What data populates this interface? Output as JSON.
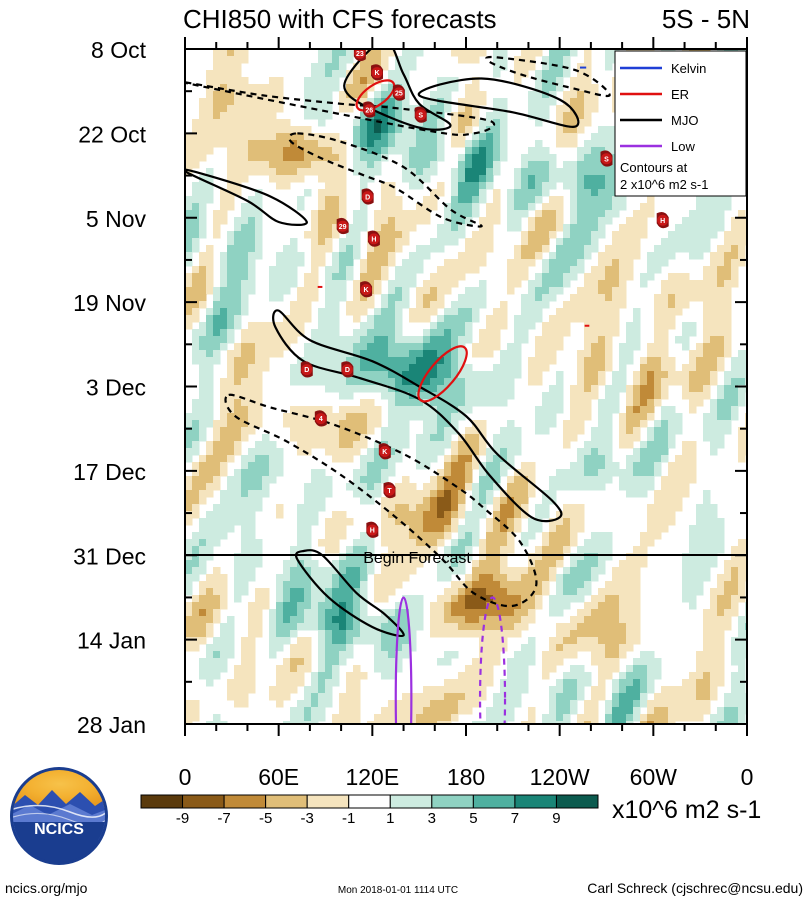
{
  "chart_data": {
    "type": "heatmap",
    "title": "CHI850 with CFS forecasts",
    "region": "5S - 5N",
    "y_tick_labels": [
      "8 Oct",
      "22 Oct",
      "5 Nov",
      "19 Nov",
      "3 Dec",
      "17 Dec",
      "31 Dec",
      "14 Jan",
      "28 Jan"
    ],
    "x_tick_labels": [
      "0",
      "60E",
      "120E",
      "180",
      "120W",
      "60W",
      "0"
    ],
    "x_longitudes": [
      0,
      60,
      120,
      180,
      240,
      300,
      360
    ],
    "forecast_line_label": "Begin Forecast",
    "forecast_start_row": 6,
    "legend": [
      {
        "name": "Kelvin",
        "color": "#1f3fd6"
      },
      {
        "name": "ER",
        "color": "#e01010"
      },
      {
        "name": "MJO",
        "color": "#000000"
      },
      {
        "name": "Low",
        "color": "#9b30e0"
      }
    ],
    "contour_note": [
      "Contours at",
      "2 x10^6 m2 s-1"
    ],
    "colorbar": {
      "ticks": [
        "-9",
        "-7",
        "-5",
        "-3",
        "-1",
        "1",
        "3",
        "5",
        "7",
        "9"
      ],
      "unit": "x10^6 m2 s-1",
      "colors": [
        "#5a3a0c",
        "#8a5a18",
        "#c08a38",
        "#e0be78",
        "#f5e4be",
        "#ffffff",
        "#cdebe0",
        "#8fd2c2",
        "#4fb0a0",
        "#1a8577",
        "#0c5b4f"
      ]
    },
    "anomaly_features": [
      {
        "kind": "positive",
        "lon": 108,
        "row": 0.9,
        "strength": 7
      },
      {
        "kind": "positive",
        "lon": 165,
        "row": 1.3,
        "strength": 5
      },
      {
        "kind": "positive",
        "lon": 255,
        "row": 1.6,
        "strength": 4
      },
      {
        "kind": "negative",
        "lon": 75,
        "row": 1.2,
        "strength": 6
      },
      {
        "kind": "negative",
        "lon": 40,
        "row": 0.6,
        "strength": 3
      },
      {
        "kind": "negative",
        "lon": 130,
        "row": 1.0,
        "strength": 2
      },
      {
        "kind": "positive",
        "lon": 30,
        "row": 2.4,
        "strength": 3
      },
      {
        "kind": "negative",
        "lon": 120,
        "row": 2.2,
        "strength": 2
      },
      {
        "kind": "positive",
        "lon": 130,
        "row": 3.5,
        "strength": 3
      },
      {
        "kind": "positive",
        "lon": 150,
        "row": 3.9,
        "strength": 7
      },
      {
        "kind": "negative",
        "lon": 280,
        "row": 3.8,
        "strength": 3
      },
      {
        "kind": "negative",
        "lon": 70,
        "row": 4.4,
        "strength": 3
      },
      {
        "kind": "negative",
        "lon": 320,
        "row": 3.0,
        "strength": 2
      },
      {
        "kind": "positive",
        "lon": 260,
        "row": 4.9,
        "strength": 2
      },
      {
        "kind": "negative",
        "lon": 160,
        "row": 5.6,
        "strength": 3
      },
      {
        "kind": "positive",
        "lon": 70,
        "row": 5.0,
        "strength": 2
      },
      {
        "kind": "negative",
        "lon": 200,
        "row": 5.4,
        "strength": 2
      },
      {
        "kind": "positive",
        "lon": 68,
        "row": 6.2,
        "strength": 3
      },
      {
        "kind": "positive",
        "lon": 105,
        "row": 6.8,
        "strength": 6
      },
      {
        "kind": "negative",
        "lon": 195,
        "row": 6.6,
        "strength": 6
      },
      {
        "kind": "negative",
        "lon": 30,
        "row": 6.8,
        "strength": 2
      },
      {
        "kind": "negative",
        "lon": 280,
        "row": 7.0,
        "strength": 2
      },
      {
        "kind": "positive",
        "lon": 250,
        "row": 7.6,
        "strength": 2
      },
      {
        "kind": "negative",
        "lon": 150,
        "row": 7.8,
        "strength": 2
      }
    ],
    "mjo_contours": [
      {
        "type": "positive",
        "points": [
          [
            128,
            -0.1
          ],
          [
            105,
            0.3
          ],
          [
            105,
            0.55
          ],
          [
            130,
            0.8
          ],
          [
            155,
            0.95
          ],
          [
            170,
            0.9
          ],
          [
            150,
            0.65
          ],
          [
            140,
            0.3
          ]
        ]
      },
      {
        "type": "positive",
        "points": [
          [
            150,
            0.55
          ],
          [
            210,
            0.75
          ],
          [
            250,
            0.92
          ],
          [
            240,
            0.6
          ],
          [
            190,
            0.35
          ]
        ]
      },
      {
        "type": "positive",
        "points": [
          [
            0,
            1.45
          ],
          [
            40,
            1.8
          ],
          [
            60,
            2.05
          ],
          [
            78,
            2.05
          ],
          [
            55,
            1.75
          ],
          [
            15,
            1.5
          ]
        ]
      },
      {
        "type": "positive",
        "points": [
          [
            60,
            3.1
          ],
          [
            80,
            3.45
          ],
          [
            120,
            3.7
          ],
          [
            150,
            4.0
          ],
          [
            180,
            4.35
          ],
          [
            200,
            4.8
          ],
          [
            235,
            5.35
          ],
          [
            240,
            5.55
          ],
          [
            222,
            5.55
          ],
          [
            195,
            5.05
          ],
          [
            175,
            4.55
          ],
          [
            150,
            4.15
          ],
          [
            112,
            3.9
          ],
          [
            76,
            3.7
          ],
          [
            58,
            3.3
          ]
        ]
      },
      {
        "type": "positive",
        "points": [
          [
            72,
            6.05
          ],
          [
            92,
            6.5
          ],
          [
            120,
            6.85
          ],
          [
            140,
            6.95
          ],
          [
            128,
            6.7
          ],
          [
            110,
            6.45
          ],
          [
            88,
            6.0
          ],
          [
            76,
            5.95
          ]
        ]
      },
      {
        "type": "negative",
        "points": [
          [
            0,
            0.4
          ],
          [
            50,
            0.55
          ],
          [
            100,
            0.65
          ],
          [
            135,
            0.7
          ],
          [
            195,
            0.85
          ],
          [
            185,
            1.0
          ],
          [
            150,
            0.95
          ]
        ]
      },
      {
        "type": "negative",
        "points": [
          [
            72,
            1.0
          ],
          [
            100,
            1.1
          ],
          [
            140,
            1.4
          ],
          [
            170,
            1.9
          ],
          [
            190,
            2.1
          ],
          [
            165,
            2.0
          ],
          [
            135,
            1.65
          ],
          [
            115,
            1.5
          ],
          [
            88,
            1.3
          ],
          [
            68,
            1.1
          ]
        ]
      },
      {
        "type": "negative",
        "points": [
          [
            200,
            0.1
          ],
          [
            250,
            0.25
          ],
          [
            272,
            0.55
          ],
          [
            245,
            0.45
          ],
          [
            215,
            0.3
          ],
          [
            195,
            0.15
          ]
        ]
      },
      {
        "type": "negative",
        "points": [
          [
            28,
            4.1
          ],
          [
            55,
            4.25
          ],
          [
            95,
            4.45
          ],
          [
            140,
            4.8
          ],
          [
            175,
            5.2
          ],
          [
            192,
            5.45
          ],
          [
            215,
            5.85
          ],
          [
            225,
            6.35
          ],
          [
            210,
            6.6
          ],
          [
            185,
            6.45
          ],
          [
            165,
            6.05
          ],
          [
            135,
            5.55
          ],
          [
            100,
            5.05
          ],
          [
            65,
            4.65
          ],
          [
            32,
            4.35
          ]
        ]
      }
    ],
    "er_contours": [
      {
        "lon": 122,
        "row": 0.55,
        "rx": 14,
        "ry": 0.12,
        "rot": -35
      },
      {
        "lon": 165,
        "row": 3.85,
        "rx": 22,
        "ry": 0.15,
        "rot": -50
      }
    ],
    "low_contours": [
      {
        "type": "positive",
        "lon": 140,
        "row": 7.7,
        "rx": 5,
        "ry": 1.2
      },
      {
        "type": "negative",
        "lon": 197,
        "row": 7.7,
        "rx": 8,
        "ry": 1.2
      }
    ],
    "storm_markers": [
      {
        "label": "23",
        "lon": 112,
        "row": 0.05
      },
      {
        "label": "K",
        "lon": 123,
        "row": 0.28
      },
      {
        "label": "25",
        "lon": 137,
        "row": 0.52
      },
      {
        "label": "26",
        "lon": 118,
        "row": 0.72
      },
      {
        "label": "S",
        "lon": 151,
        "row": 0.78
      },
      {
        "label": "S",
        "lon": 270,
        "row": 1.3
      },
      {
        "label": "D",
        "lon": 117,
        "row": 1.75
      },
      {
        "label": "29",
        "lon": 101,
        "row": 2.1
      },
      {
        "label": "H",
        "lon": 121,
        "row": 2.25
      },
      {
        "label": "H",
        "lon": 306,
        "row": 2.03
      },
      {
        "label": "K",
        "lon": 116,
        "row": 2.85
      },
      {
        "label": "D",
        "lon": 78,
        "row": 3.8
      },
      {
        "label": "D",
        "lon": 104,
        "row": 3.8
      },
      {
        "label": "4",
        "lon": 87,
        "row": 4.38
      },
      {
        "label": "K",
        "lon": 128,
        "row": 4.77
      },
      {
        "label": "T",
        "lon": 131,
        "row": 5.23
      },
      {
        "label": "H",
        "lon": 120,
        "row": 5.7
      }
    ],
    "noise_seed": 7
  },
  "footer": {
    "logo_text": "NCICS",
    "left": "ncics.org/mjo",
    "center": "Mon 2018-01-01 1114 UTC",
    "right": "Carl Schreck (cjschrec@ncsu.edu)"
  }
}
